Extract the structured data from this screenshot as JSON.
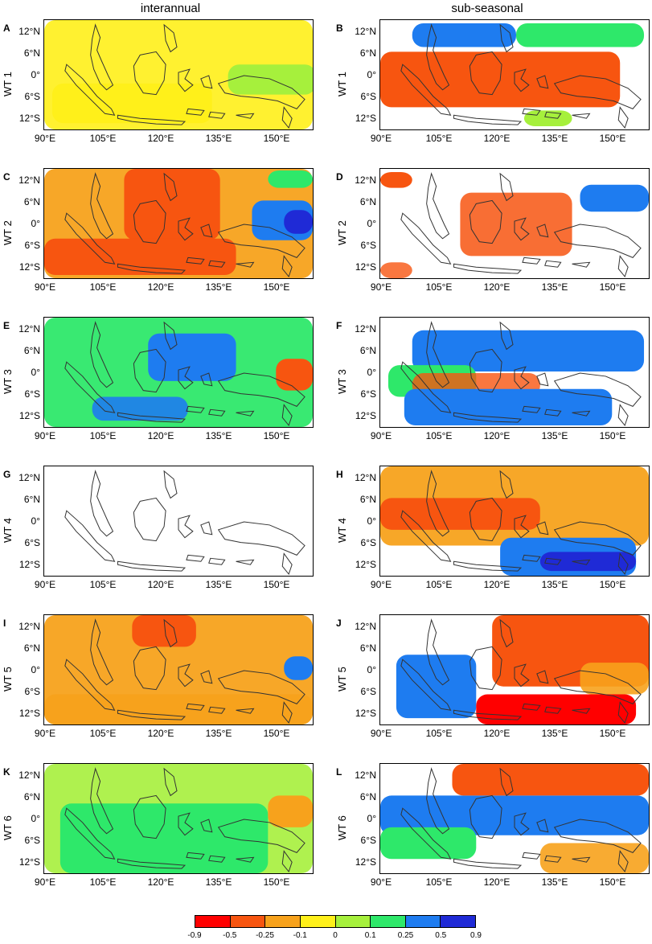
{
  "columns": [
    "interannual",
    "sub-seasonal"
  ],
  "rows": [
    "WT 1",
    "WT 2",
    "WT 3",
    "WT 4",
    "WT 5",
    "WT 6"
  ],
  "panel_letters": [
    "A",
    "B",
    "C",
    "D",
    "E",
    "F",
    "G",
    "H",
    "I",
    "J",
    "K",
    "L"
  ],
  "lat_ticks": [
    "12°N",
    "6°N",
    "0°",
    "6°S",
    "12°S"
  ],
  "lon_ticks": [
    "90°E",
    "105°E",
    "120°E",
    "135°E",
    "150°E"
  ],
  "colorbar": {
    "ticks": [
      "-0.9",
      "-0.5",
      "-0.25",
      "-0.1",
      "0",
      "0.1",
      "0.25",
      "0.5",
      "0.9"
    ],
    "colors": [
      "#ff0000",
      "#f75510",
      "#f7a21c",
      "#fff01a",
      "#a6f03c",
      "#2ee86a",
      "#1e7cf0",
      "#1f2ad6"
    ]
  },
  "panels": [
    {
      "letter": "A",
      "row": "WT 1",
      "column": "interannual",
      "colors": [
        "#fff01a",
        "#a6f03c"
      ]
    },
    {
      "letter": "B",
      "row": "WT 1",
      "column": "sub-seasonal",
      "colors": [
        "#f75510",
        "#1e7cf0",
        "#2ee86a",
        "#a6f03c"
      ]
    },
    {
      "letter": "C",
      "row": "WT 2",
      "column": "interannual",
      "colors": [
        "#f7a21c",
        "#f75510",
        "#1e7cf0",
        "#1f2ad6",
        "#2ee86a"
      ]
    },
    {
      "letter": "D",
      "row": "WT 2",
      "column": "sub-seasonal",
      "colors": [
        "#f75510",
        "#1e7cf0"
      ]
    },
    {
      "letter": "E",
      "row": "WT 3",
      "column": "interannual",
      "colors": [
        "#2ee86a",
        "#1e7cf0",
        "#f75510"
      ]
    },
    {
      "letter": "F",
      "row": "WT 3",
      "column": "sub-seasonal",
      "colors": [
        "#1e7cf0",
        "#2ee86a",
        "#f75510"
      ]
    },
    {
      "letter": "G",
      "row": "WT 4",
      "column": "interannual",
      "colors": []
    },
    {
      "letter": "H",
      "row": "WT 4",
      "column": "sub-seasonal",
      "colors": [
        "#f7a21c",
        "#f75510",
        "#1e7cf0",
        "#1f2ad6"
      ]
    },
    {
      "letter": "I",
      "row": "WT 5",
      "column": "interannual",
      "colors": [
        "#f7a21c",
        "#f75510",
        "#1e7cf0"
      ]
    },
    {
      "letter": "J",
      "row": "WT 5",
      "column": "sub-seasonal",
      "colors": [
        "#f75510",
        "#ff0000",
        "#1e7cf0"
      ]
    },
    {
      "letter": "K",
      "row": "WT 6",
      "column": "interannual",
      "colors": [
        "#a6f03c",
        "#2ee86a",
        "#f7a21c"
      ]
    },
    {
      "letter": "L",
      "row": "WT 6",
      "column": "sub-seasonal",
      "colors": [
        "#1e7cf0",
        "#f75510",
        "#f7a21c"
      ]
    }
  ]
}
